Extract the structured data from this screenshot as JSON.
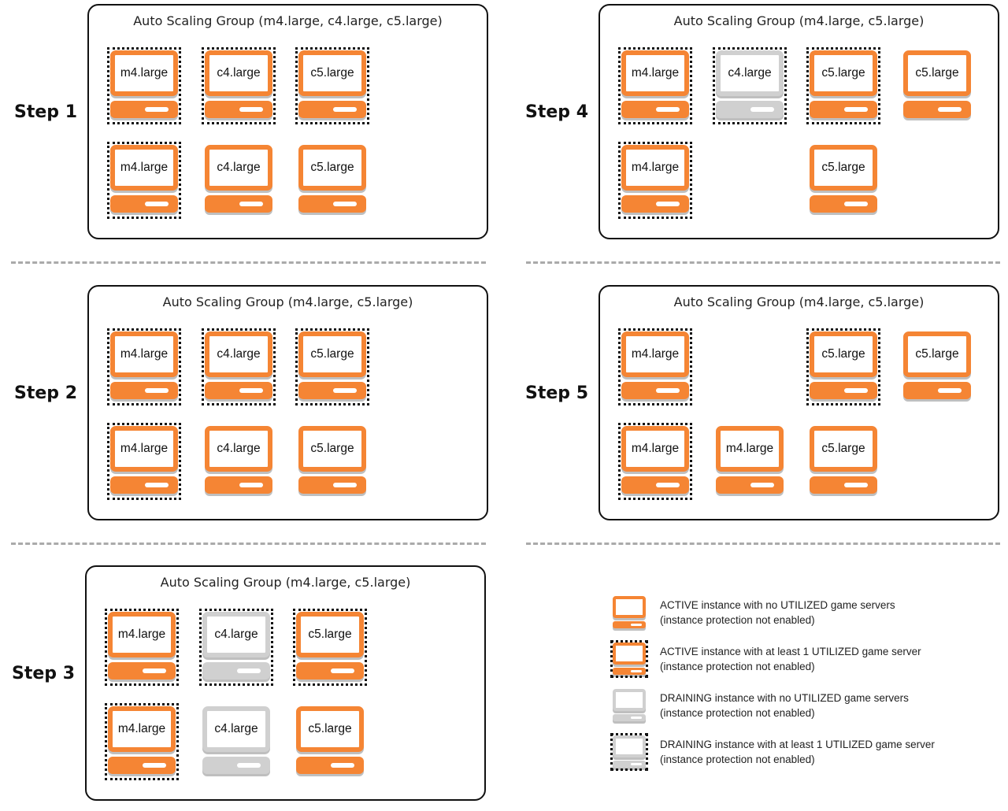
{
  "steps": [
    {
      "label": "Step 1",
      "title": "Auto Scaling Group (m4.large, c4.large, c5.large)",
      "rows": [
        [
          {
            "type": "m4.large",
            "state": "active",
            "utilized": true
          },
          {
            "type": "c4.large",
            "state": "active",
            "utilized": true
          },
          {
            "type": "c5.large",
            "state": "active",
            "utilized": true
          },
          null
        ],
        [
          {
            "type": "m4.large",
            "state": "active",
            "utilized": true
          },
          {
            "type": "c4.large",
            "state": "active",
            "utilized": false
          },
          {
            "type": "c5.large",
            "state": "active",
            "utilized": false
          },
          null
        ]
      ]
    },
    {
      "label": "Step 2",
      "title": "Auto Scaling Group (m4.large, c5.large)",
      "rows": [
        [
          {
            "type": "m4.large",
            "state": "active",
            "utilized": true
          },
          {
            "type": "c4.large",
            "state": "active",
            "utilized": true
          },
          {
            "type": "c5.large",
            "state": "active",
            "utilized": true
          },
          null
        ],
        [
          {
            "type": "m4.large",
            "state": "active",
            "utilized": true
          },
          {
            "type": "c4.large",
            "state": "active",
            "utilized": false
          },
          {
            "type": "c5.large",
            "state": "active",
            "utilized": false
          },
          null
        ]
      ]
    },
    {
      "label": "Step 3",
      "title": "Auto Scaling Group (m4.large, c5.large)",
      "rows": [
        [
          {
            "type": "m4.large",
            "state": "active",
            "utilized": true
          },
          {
            "type": "c4.large",
            "state": "draining",
            "utilized": true
          },
          {
            "type": "c5.large",
            "state": "active",
            "utilized": true
          },
          null
        ],
        [
          {
            "type": "m4.large",
            "state": "active",
            "utilized": true
          },
          {
            "type": "c4.large",
            "state": "draining",
            "utilized": false
          },
          {
            "type": "c5.large",
            "state": "active",
            "utilized": false
          },
          null
        ]
      ]
    },
    {
      "label": "Step 4",
      "title": "Auto Scaling Group (m4.large, c5.large)",
      "rows": [
        [
          {
            "type": "m4.large",
            "state": "active",
            "utilized": true
          },
          {
            "type": "c4.large",
            "state": "draining",
            "utilized": true
          },
          {
            "type": "c5.large",
            "state": "active",
            "utilized": true
          },
          {
            "type": "c5.large",
            "state": "active",
            "utilized": false
          }
        ],
        [
          {
            "type": "m4.large",
            "state": "active",
            "utilized": true
          },
          null,
          {
            "type": "c5.large",
            "state": "active",
            "utilized": false
          },
          null
        ]
      ]
    },
    {
      "label": "Step 5",
      "title": "Auto Scaling Group (m4.large, c5.large)",
      "rows": [
        [
          {
            "type": "m4.large",
            "state": "active",
            "utilized": true
          },
          null,
          {
            "type": "c5.large",
            "state": "active",
            "utilized": true
          },
          {
            "type": "c5.large",
            "state": "active",
            "utilized": false
          }
        ],
        [
          {
            "type": "m4.large",
            "state": "active",
            "utilized": true
          },
          {
            "type": "m4.large",
            "state": "active",
            "utilized": false
          },
          {
            "type": "c5.large",
            "state": "active",
            "utilized": false
          },
          null
        ]
      ]
    }
  ],
  "legend": [
    {
      "state": "active",
      "utilized": false,
      "line1": "ACTIVE instance with no UTILIZED game servers",
      "line2": "(instance protection not enabled)"
    },
    {
      "state": "active",
      "utilized": true,
      "line1": "ACTIVE instance with at least 1 UTILIZED game server",
      "line2": "(instance protection not enabled)"
    },
    {
      "state": "draining",
      "utilized": false,
      "line1": "DRAINING instance with no UTILIZED game servers",
      "line2": "(instance protection not enabled)"
    },
    {
      "state": "draining",
      "utilized": true,
      "line1": "DRAINING instance with at least 1 UTILIZED game server",
      "line2": "(instance protection not enabled)"
    }
  ],
  "colors": {
    "active": "#f58534",
    "draining": "#d0d0d0",
    "utilized_border": "#111111"
  }
}
